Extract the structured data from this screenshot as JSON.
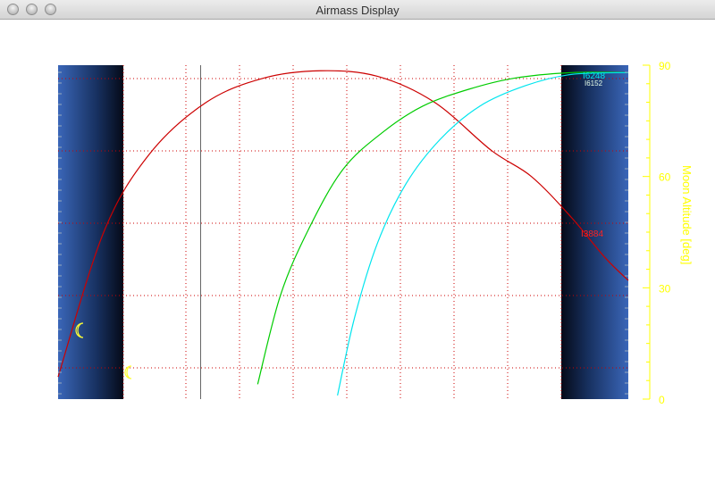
{
  "window": {
    "title": "Airmass Display"
  },
  "chart_data": {
    "type": "line",
    "y_axis_right": {
      "label": "Moon Altitude [deg]",
      "ticks": [
        0,
        30,
        60,
        90
      ],
      "range": [
        0,
        90
      ],
      "color": "#ffff00"
    },
    "grid": true,
    "grid_color": "#cc0000",
    "series": [
      {
        "name": "I3884",
        "color": "#cc0000",
        "points": [
          [
            0,
            6
          ],
          [
            0.08,
            45
          ],
          [
            0.16,
            66
          ],
          [
            0.26,
            80
          ],
          [
            0.36,
            86.5
          ],
          [
            0.46,
            88.5
          ],
          [
            0.56,
            87
          ],
          [
            0.66,
            80
          ],
          [
            0.76,
            67
          ],
          [
            0.83,
            60
          ],
          [
            0.9,
            49
          ],
          [
            0.96,
            38
          ],
          [
            1.0,
            32
          ]
        ]
      },
      {
        "name": "",
        "color": "#00cc00",
        "points": [
          [
            0.35,
            4
          ],
          [
            0.39,
            28
          ],
          [
            0.44,
            46
          ],
          [
            0.5,
            62
          ],
          [
            0.57,
            72
          ],
          [
            0.64,
            79
          ],
          [
            0.72,
            83.5
          ],
          [
            0.8,
            86.5
          ],
          [
            0.9,
            88
          ],
          [
            1.0,
            88
          ]
        ]
      },
      {
        "name": "I6248",
        "color": "#00e5ee",
        "points": [
          [
            0.49,
            1
          ],
          [
            0.52,
            22
          ],
          [
            0.56,
            42
          ],
          [
            0.61,
            58
          ],
          [
            0.67,
            70
          ],
          [
            0.74,
            79
          ],
          [
            0.82,
            84.5
          ],
          [
            0.9,
            87.5
          ],
          [
            1.0,
            88
          ]
        ]
      }
    ],
    "labels": [
      "I3884",
      "I6248",
      "I6152"
    ],
    "vertical_marker": 0.25,
    "twilight_color": "#3a66b8",
    "moon_symbols": 2
  }
}
